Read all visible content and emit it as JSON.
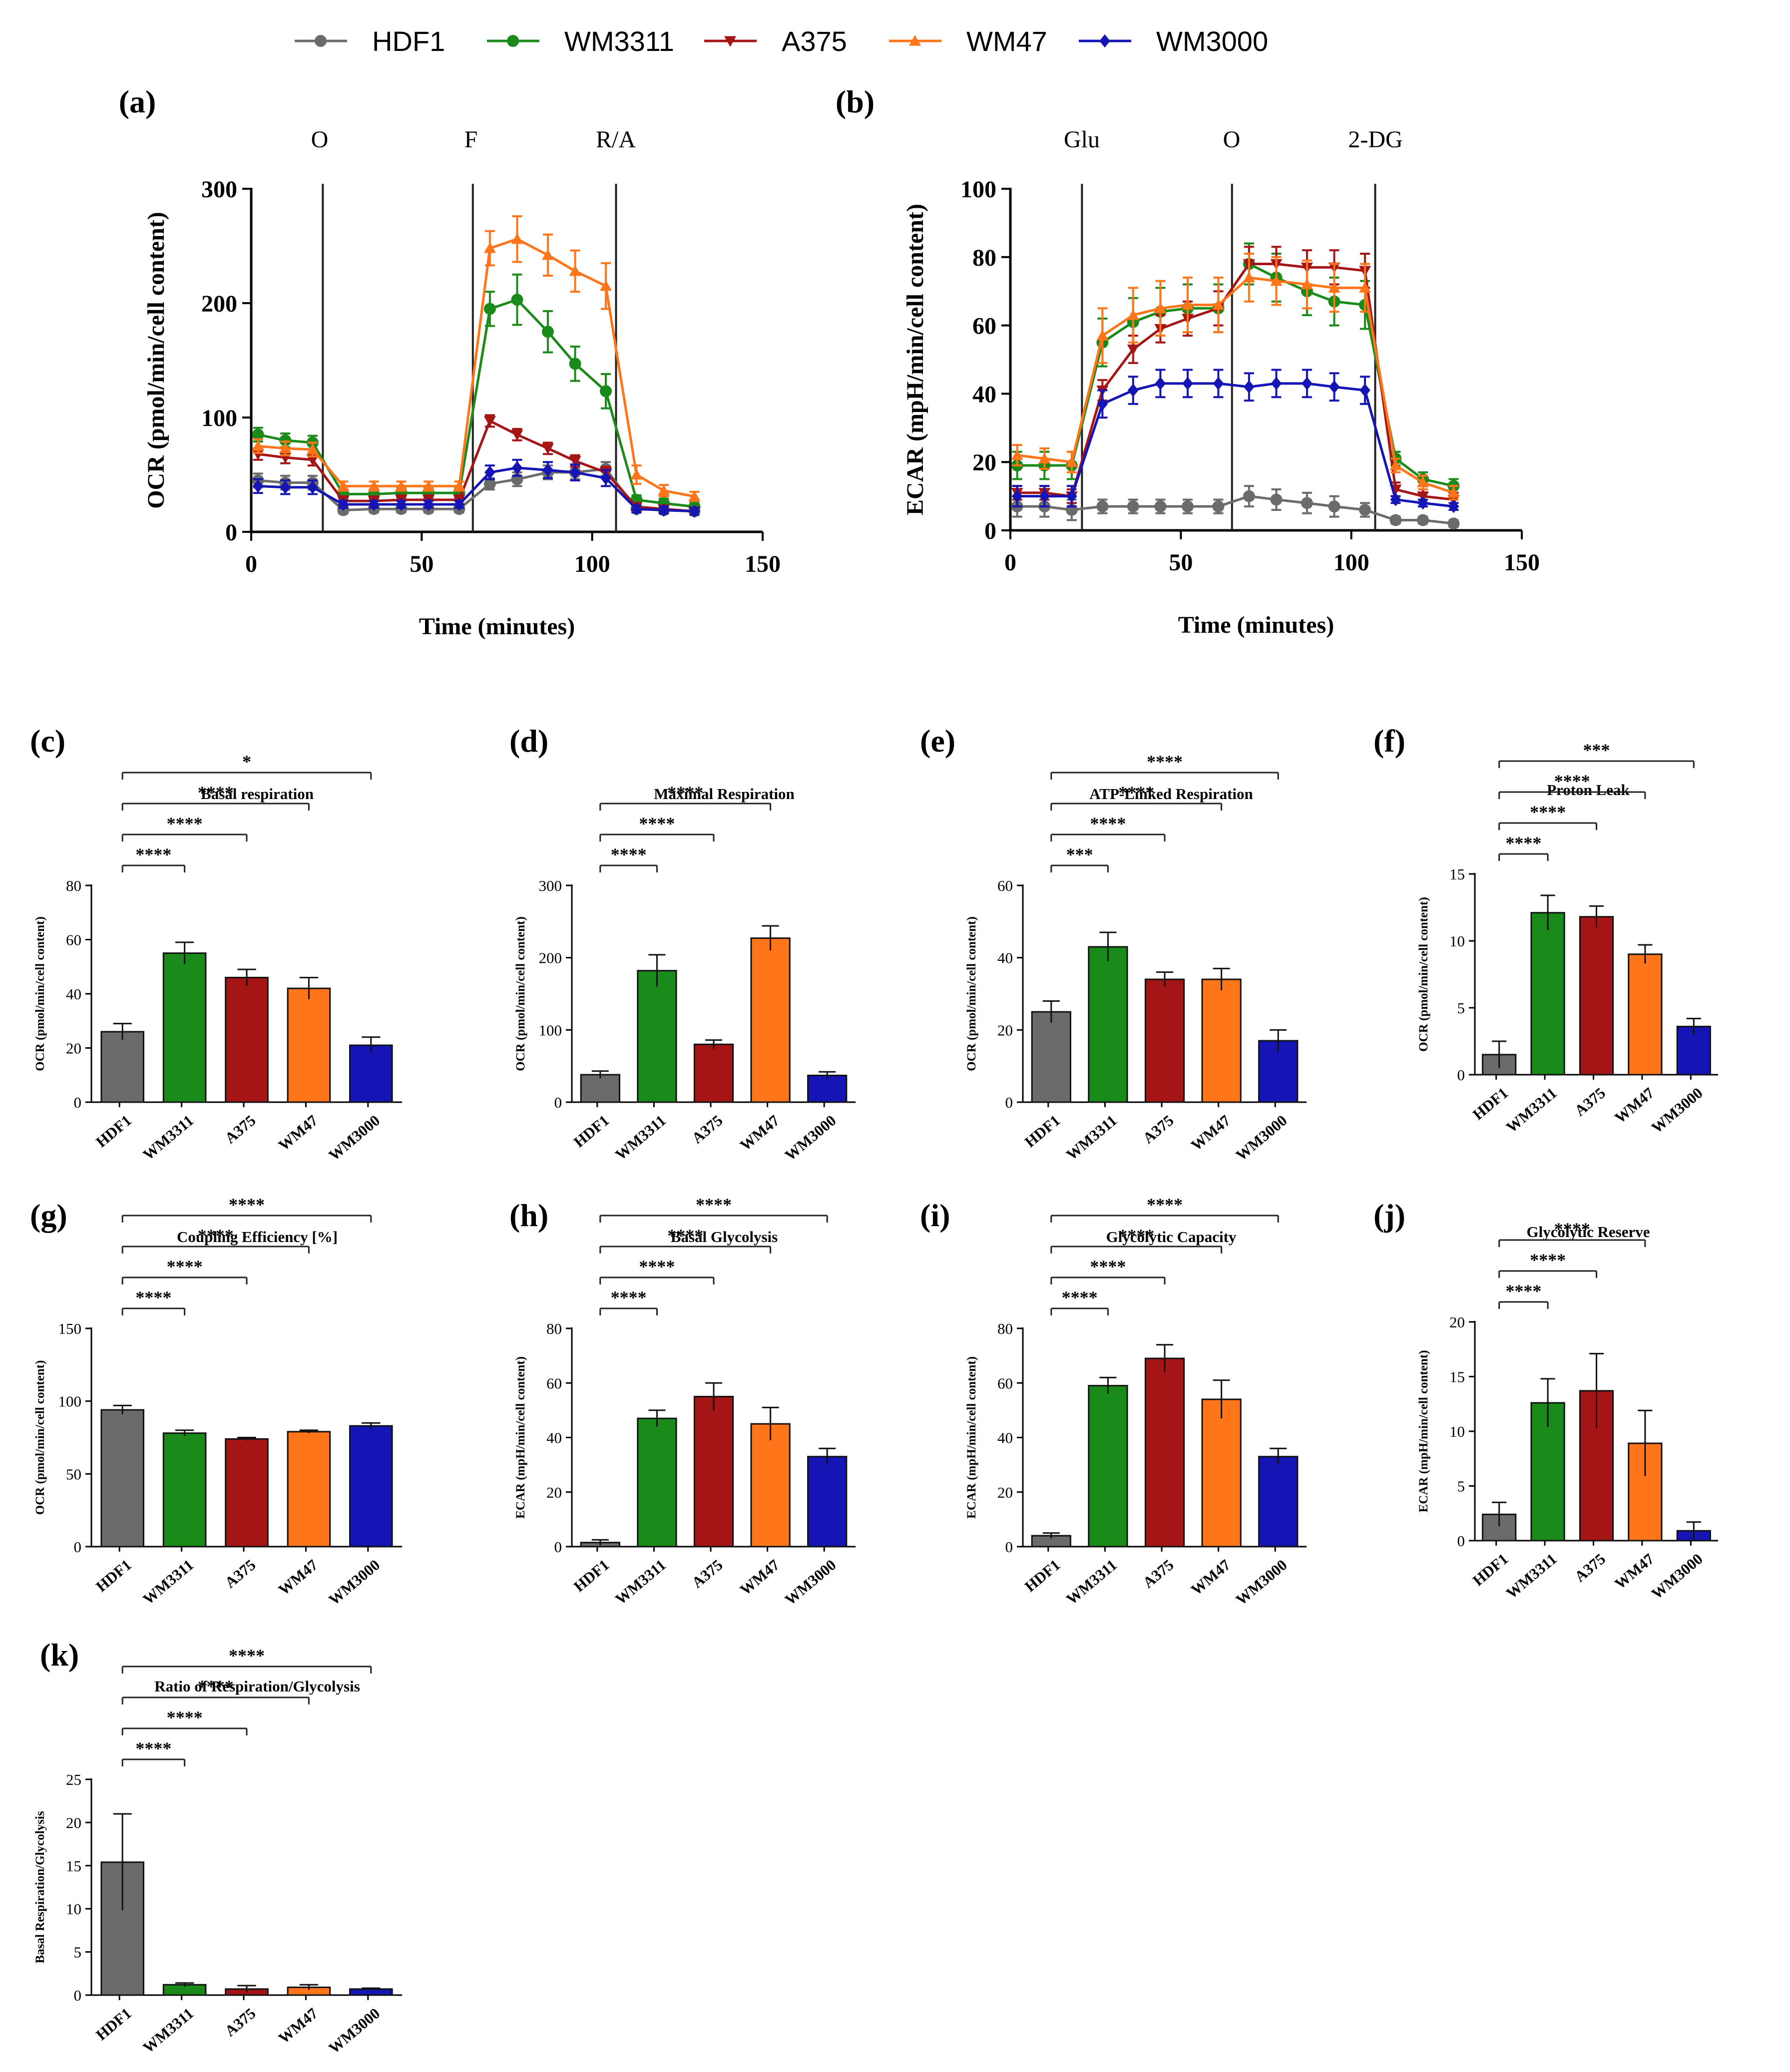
{
  "legend": [
    {
      "name": "HDF1",
      "color": "#6b6b6b",
      "marker": "circle"
    },
    {
      "name": "WM3311",
      "color": "#1a8a1a",
      "marker": "circle"
    },
    {
      "name": "A375",
      "color": "#a51515",
      "marker": "triangle-down"
    },
    {
      "name": "WM47",
      "color": "#ff7519",
      "marker": "triangle-up"
    },
    {
      "name": "WM3000",
      "color": "#1515b5",
      "marker": "diamond"
    }
  ],
  "chart_data": [
    {
      "id": "a",
      "panel_label": "(a)",
      "type": "line",
      "title": "",
      "xlabel": "Time (minutes)",
      "ylabel": "OCR (pmol/min/cell content)",
      "xlim": [
        0,
        150
      ],
      "ylim": [
        0,
        300
      ],
      "xticks": [
        "0",
        "50",
        "100",
        "150"
      ],
      "yticks": [
        "0",
        "100",
        "200",
        "300"
      ],
      "events": [
        {
          "x": 21,
          "label": "O"
        },
        {
          "x": 65,
          "label": "F"
        },
        {
          "x": 107,
          "label": "R/A"
        }
      ],
      "x": [
        2,
        10,
        18,
        27,
        36,
        44,
        52,
        61,
        70,
        78,
        87,
        95,
        104,
        113,
        121,
        130
      ],
      "series": [
        {
          "name": "HDF1",
          "values": [
            45,
            43,
            43,
            19,
            20,
            20,
            20,
            20,
            42,
            46,
            52,
            52,
            55,
            20,
            19,
            18
          ],
          "err": [
            6,
            6,
            6,
            3,
            3,
            3,
            3,
            3,
            5,
            6,
            6,
            6,
            6,
            3,
            3,
            3
          ]
        },
        {
          "name": "WM3311",
          "values": [
            85,
            80,
            78,
            33,
            33,
            34,
            34,
            34,
            195,
            203,
            175,
            147,
            123,
            28,
            25,
            22
          ],
          "err": [
            6,
            6,
            6,
            4,
            4,
            4,
            4,
            4,
            15,
            22,
            18,
            15,
            15,
            4,
            4,
            4
          ]
        },
        {
          "name": "A375",
          "values": [
            68,
            65,
            63,
            27,
            27,
            28,
            28,
            28,
            97,
            85,
            73,
            62,
            52,
            22,
            20,
            18
          ],
          "err": [
            5,
            5,
            5,
            4,
            4,
            4,
            4,
            4,
            5,
            5,
            5,
            5,
            5,
            3,
            3,
            3
          ]
        },
        {
          "name": "WM47",
          "values": [
            75,
            73,
            72,
            40,
            40,
            40,
            40,
            40,
            248,
            256,
            242,
            228,
            215,
            50,
            36,
            31
          ],
          "err": [
            6,
            6,
            6,
            4,
            4,
            4,
            4,
            4,
            15,
            20,
            18,
            18,
            20,
            8,
            5,
            4
          ]
        },
        {
          "name": "WM3000",
          "values": [
            40,
            39,
            39,
            24,
            24,
            24,
            24,
            24,
            52,
            56,
            54,
            52,
            47,
            20,
            19,
            18
          ],
          "err": [
            6,
            6,
            6,
            3,
            3,
            3,
            3,
            3,
            6,
            7,
            7,
            7,
            7,
            3,
            3,
            3
          ]
        }
      ]
    },
    {
      "id": "b",
      "panel_label": "(b)",
      "type": "line",
      "title": "",
      "xlabel": "Time (minutes)",
      "ylabel": "ECAR (mpH/min/cell content)",
      "xlim": [
        0,
        150
      ],
      "ylim": [
        0,
        100
      ],
      "xticks": [
        "0",
        "50",
        "100",
        "150"
      ],
      "yticks": [
        "0",
        "20",
        "40",
        "60",
        "80",
        "100"
      ],
      "events": [
        {
          "x": 21,
          "label": "Glu"
        },
        {
          "x": 65,
          "label": "O"
        },
        {
          "x": 107,
          "label": "2-DG"
        }
      ],
      "x": [
        2,
        10,
        18,
        27,
        36,
        44,
        52,
        61,
        70,
        78,
        87,
        95,
        104,
        113,
        121,
        130
      ],
      "series": [
        {
          "name": "HDF1",
          "values": [
            7,
            7,
            6,
            7,
            7,
            7,
            7,
            7,
            10,
            9,
            8,
            7,
            6,
            3,
            3,
            2
          ],
          "err": [
            3,
            3,
            3,
            2,
            2,
            2,
            2,
            2,
            3,
            3,
            3,
            3,
            2,
            1,
            1,
            1
          ]
        },
        {
          "name": "WM3311",
          "values": [
            19,
            19,
            19,
            55,
            61,
            64,
            65,
            65,
            78,
            74,
            70,
            67,
            66,
            21,
            15,
            13
          ],
          "err": [
            4,
            4,
            4,
            7,
            7,
            7,
            7,
            7,
            6,
            7,
            7,
            7,
            7,
            2,
            2,
            2
          ]
        },
        {
          "name": "A375",
          "values": [
            11,
            11,
            10,
            41,
            53,
            59,
            62,
            65,
            78,
            78,
            77,
            77,
            76,
            12,
            10,
            9
          ],
          "err": [
            2,
            2,
            2,
            3,
            4,
            4,
            5,
            5,
            5,
            5,
            5,
            5,
            5,
            2,
            2,
            2
          ]
        },
        {
          "name": "WM47",
          "values": [
            22,
            21,
            20,
            57,
            63,
            65,
            66,
            66,
            74,
            73,
            72,
            71,
            71,
            19,
            14,
            11
          ],
          "err": [
            3,
            3,
            3,
            8,
            8,
            8,
            8,
            8,
            7,
            7,
            7,
            7,
            7,
            2,
            2,
            2
          ]
        },
        {
          "name": "WM3000",
          "values": [
            10,
            10,
            10,
            37,
            41,
            43,
            43,
            43,
            42,
            43,
            43,
            42,
            41,
            9,
            8,
            7
          ],
          "err": [
            3,
            3,
            3,
            4,
            4,
            4,
            4,
            4,
            4,
            4,
            4,
            4,
            4,
            1,
            1,
            1
          ]
        }
      ]
    },
    {
      "id": "c",
      "panel_label": "(c)",
      "type": "bar",
      "title": "Basal respiration",
      "ylabel": "OCR (pmol/min/cell content)",
      "ylim": [
        0,
        80
      ],
      "yticks": [
        "0",
        "20",
        "40",
        "60",
        "80"
      ],
      "categories": [
        "HDF1",
        "WM3311",
        "A375",
        "WM47",
        "WM3000"
      ],
      "values": [
        26,
        55,
        46,
        42,
        21
      ],
      "err": [
        3,
        4,
        3,
        4,
        3
      ],
      "significance": [
        {
          "to": 1,
          "label": "****"
        },
        {
          "to": 2,
          "label": "****"
        },
        {
          "to": 3,
          "label": "****"
        },
        {
          "to": 4,
          "label": "*"
        }
      ]
    },
    {
      "id": "d",
      "panel_label": "(d)",
      "type": "bar",
      "title": "Maximal Respiration",
      "ylabel": "OCR (pmol/min/cell content)",
      "ylim": [
        0,
        300
      ],
      "yticks": [
        "0",
        "100",
        "200",
        "300"
      ],
      "categories": [
        "HDF1",
        "WM3311",
        "A375",
        "WM47",
        "WM3000"
      ],
      "values": [
        38,
        182,
        80,
        227,
        37
      ],
      "err": [
        5,
        22,
        6,
        17,
        5
      ],
      "significance": [
        {
          "to": 1,
          "label": "****"
        },
        {
          "to": 2,
          "label": "****"
        },
        {
          "to": 3,
          "label": "****"
        }
      ]
    },
    {
      "id": "e",
      "panel_label": "(e)",
      "type": "bar",
      "title": "ATP-Linked Respiration",
      "ylabel": "OCR (pmol/min/cell content)",
      "ylim": [
        0,
        60
      ],
      "yticks": [
        "0",
        "20",
        "40",
        "60"
      ],
      "categories": [
        "HDF1",
        "WM3311",
        "A375",
        "WM47",
        "WM3000"
      ],
      "values": [
        25,
        43,
        34,
        34,
        17
      ],
      "err": [
        3,
        4,
        2,
        3,
        3
      ],
      "significance": [
        {
          "to": 1,
          "label": "***"
        },
        {
          "to": 2,
          "label": "****"
        },
        {
          "to": 3,
          "label": "****"
        },
        {
          "to": 4,
          "label": "****"
        }
      ]
    },
    {
      "id": "f",
      "panel_label": "(f)",
      "type": "bar",
      "title": "Proton Leak",
      "ylabel": "OCR (pmol/min/cell content)",
      "ylim": [
        0,
        15
      ],
      "yticks": [
        "0",
        "5",
        "10",
        "15"
      ],
      "categories": [
        "HDF1",
        "WM3311",
        "A375",
        "WM47",
        "WM3000"
      ],
      "values": [
        1.5,
        12.1,
        11.8,
        9.0,
        3.6
      ],
      "err": [
        1.0,
        1.3,
        0.8,
        0.7,
        0.6
      ],
      "significance": [
        {
          "to": 1,
          "label": "****"
        },
        {
          "to": 2,
          "label": "****"
        },
        {
          "to": 3,
          "label": "****"
        },
        {
          "to": 4,
          "label": "***"
        }
      ]
    },
    {
      "id": "g",
      "panel_label": "(g)",
      "type": "bar",
      "title": "Coupling Efficiency [%]",
      "ylabel": "OCR (pmol/min/cell content)",
      "ylim": [
        0,
        150
      ],
      "yticks": [
        "0",
        "50",
        "100",
        "150"
      ],
      "categories": [
        "HDF1",
        "WM3311",
        "A375",
        "WM47",
        "WM3000"
      ],
      "values": [
        94,
        78,
        74,
        79,
        83
      ],
      "err": [
        3,
        2,
        1,
        1,
        2
      ],
      "significance": [
        {
          "to": 1,
          "label": "****"
        },
        {
          "to": 2,
          "label": "****"
        },
        {
          "to": 3,
          "label": "****"
        },
        {
          "to": 4,
          "label": "****"
        }
      ]
    },
    {
      "id": "h",
      "panel_label": "(h)",
      "type": "bar",
      "title": "Basal Glycolysis",
      "ylabel": "ECAR (mpH/min/cell content)",
      "ylim": [
        0,
        80
      ],
      "yticks": [
        "0",
        "20",
        "40",
        "60",
        "80"
      ],
      "categories": [
        "HDF1",
        "WM3311",
        "A375",
        "WM47",
        "WM3000"
      ],
      "values": [
        1.5,
        47,
        55,
        45,
        33
      ],
      "err": [
        1,
        3,
        5,
        6,
        3
      ],
      "significance": [
        {
          "to": 1,
          "label": "****"
        },
        {
          "to": 2,
          "label": "****"
        },
        {
          "to": 3,
          "label": "****"
        },
        {
          "to": 4,
          "label": "****"
        }
      ]
    },
    {
      "id": "i",
      "panel_label": "(i)",
      "type": "bar",
      "title": "Glycolytic Capacity",
      "ylabel": "ECAR (mpH/min/cell content)",
      "ylim": [
        0,
        80
      ],
      "yticks": [
        "0",
        "20",
        "40",
        "60",
        "80"
      ],
      "categories": [
        "HDF1",
        "WM3311",
        "A375",
        "WM47",
        "WM3000"
      ],
      "values": [
        4,
        59,
        69,
        54,
        33
      ],
      "err": [
        1,
        3,
        5,
        7,
        3
      ],
      "significance": [
        {
          "to": 1,
          "label": "****"
        },
        {
          "to": 2,
          "label": "****"
        },
        {
          "to": 3,
          "label": "****"
        },
        {
          "to": 4,
          "label": "****"
        }
      ]
    },
    {
      "id": "j",
      "panel_label": "(j)",
      "type": "bar",
      "title": "Glycolytic Reserve",
      "ylabel": "ECAR (mpH/min/cell content)",
      "ylim": [
        0,
        20
      ],
      "yticks": [
        "0",
        "5",
        "10",
        "15",
        "20"
      ],
      "categories": [
        "HDF1",
        "WM3311",
        "A375",
        "WM47",
        "WM3000"
      ],
      "values": [
        2.4,
        12.6,
        13.7,
        8.9,
        0.9
      ],
      "err": [
        1.1,
        2.2,
        3.4,
        3.0,
        0.8
      ],
      "significance": [
        {
          "to": 1,
          "label": "****"
        },
        {
          "to": 2,
          "label": "****"
        },
        {
          "to": 3,
          "label": "****"
        }
      ]
    },
    {
      "id": "k",
      "panel_label": "(k)",
      "type": "bar",
      "title": "Ratio of Respiration/Glycolysis",
      "ylabel": "Basal Respiration/Glycolysis",
      "ylim": [
        0,
        25
      ],
      "yticks": [
        "0",
        "5",
        "10",
        "15",
        "20",
        "25"
      ],
      "categories": [
        "HDF1",
        "WM3311",
        "A375",
        "WM47",
        "WM3000"
      ],
      "values": [
        15.4,
        1.2,
        0.7,
        0.9,
        0.7
      ],
      "err": [
        5.6,
        0.2,
        0.4,
        0.3,
        0.1
      ],
      "significance": [
        {
          "to": 1,
          "label": "****"
        },
        {
          "to": 2,
          "label": "****"
        },
        {
          "to": 3,
          "label": "****"
        },
        {
          "to": 4,
          "label": "****"
        }
      ]
    }
  ]
}
